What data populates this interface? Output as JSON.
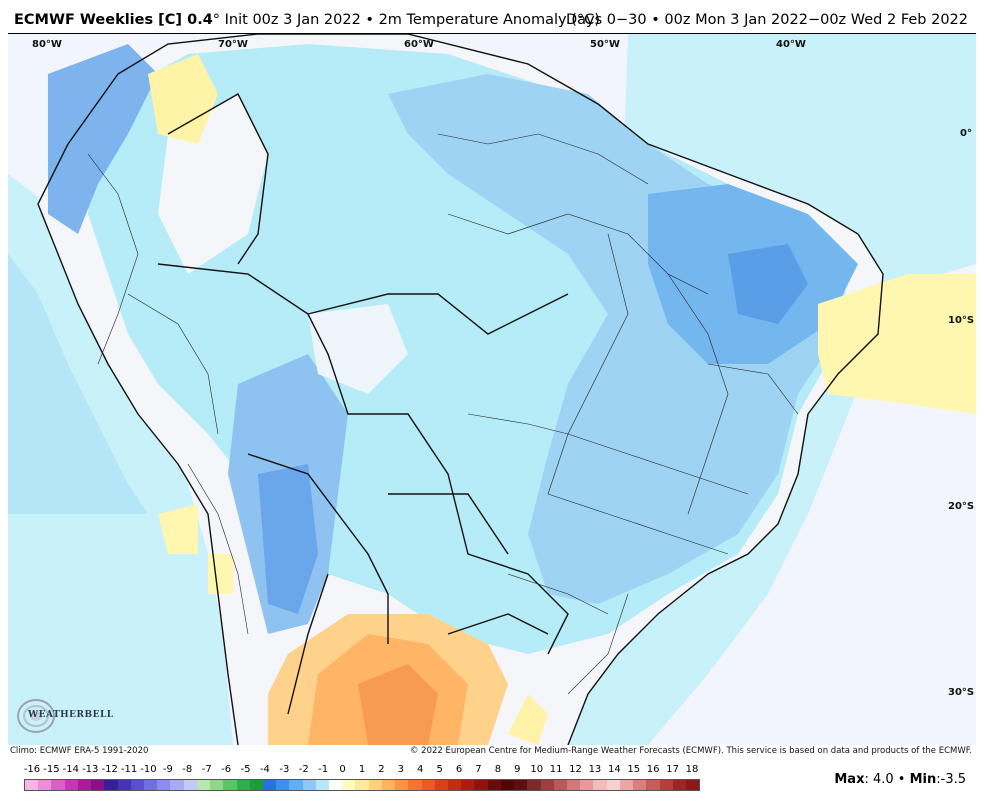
{
  "header": {
    "title_bold": "ECMWF Weeklies [C] 0.4",
    "title_rest": "° Init 00z 3 Jan 2022 • 2m Temperature Anomaly (°C)",
    "right": "Days 0−30 • 00z Mon 3 Jan 2022−00z Wed 2 Feb 2022"
  },
  "map": {
    "lon_labels": [
      "80°W",
      "70°W",
      "60°W",
      "50°W",
      "40°W"
    ],
    "lat_labels": [
      "0°",
      "10°S",
      "20°S",
      "30°S"
    ]
  },
  "footer": {
    "climo": "Climo: ECMWF ERA-5 1991-2020",
    "copyright": "© 2022 European Centre for Medium-Range Weather Forecasts (ECMWF). This service is based on data and products of the ECMWF."
  },
  "logo": {
    "text": "WEATHERBELL"
  },
  "colorbar": {
    "ticks": [
      "-16",
      "-15",
      "-14",
      "-13",
      "-12",
      "-11",
      "-10",
      "-9",
      "-8",
      "-7",
      "-6",
      "-5",
      "-4",
      "-3",
      "-2",
      "-1",
      "0",
      "1",
      "2",
      "3",
      "4",
      "5",
      "6",
      "7",
      "8",
      "9",
      "10",
      "11",
      "12",
      "13",
      "14",
      "15",
      "16",
      "17",
      "18"
    ],
    "colors": [
      "#f4b6e6",
      "#ea8fd8",
      "#dc5fc8",
      "#c935b3",
      "#b0199a",
      "#8a117f",
      "#3a1e97",
      "#4532b8",
      "#5a4fd0",
      "#6f6fe0",
      "#8b8deb",
      "#a7acf2",
      "#c4c8f6",
      "#b8e8b0",
      "#8fd88a",
      "#5cc465",
      "#2fae49",
      "#1e9a3f",
      "#2d6fe0",
      "#3f8ef0",
      "#66aef4",
      "#8cc8f6",
      "#b6e6f8",
      "#ffffff",
      "#fff9c4",
      "#ffe9a0",
      "#ffd17a",
      "#ffb35a",
      "#ff9440",
      "#f77430",
      "#ee5a24",
      "#dd3f1c",
      "#c72b16",
      "#ad1c12",
      "#8f1410",
      "#6b0c0c",
      "#4e0707",
      "#5a1010",
      "#7a2a2a",
      "#9a4040",
      "#b85a5a",
      "#cf7a7a",
      "#e39b9b",
      "#f2bcbc",
      "#f7d0d0",
      "#e8a8a8",
      "#d88080",
      "#c85c5c",
      "#b83c3c",
      "#a02424",
      "#8a1a1a"
    ]
  },
  "stats": {
    "max_label": "Max",
    "max_value": ": 4.0",
    "sep": " • ",
    "min_label": "Min",
    "min_value": ":-3.5"
  }
}
